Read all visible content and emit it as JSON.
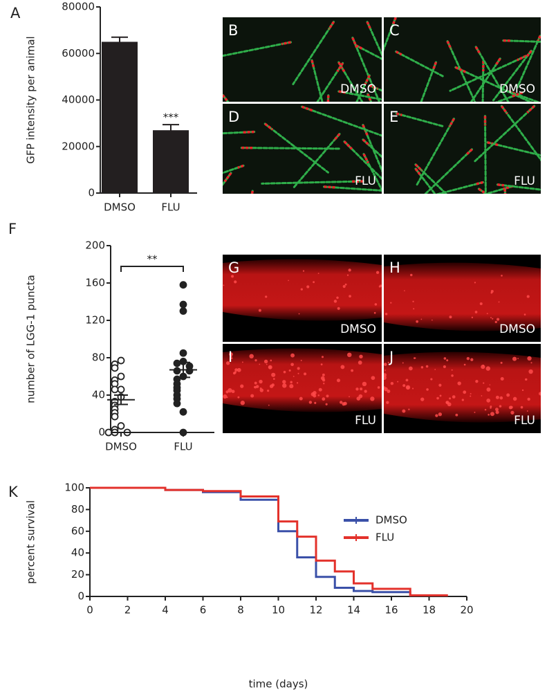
{
  "chart_data": [
    {
      "type": "bar",
      "panel": "A",
      "ylabel": "GFP intensity per animal",
      "categories": [
        "DMSO",
        "FLU"
      ],
      "values": [
        65000,
        27000
      ],
      "errors": [
        2000,
        2400
      ],
      "annotations": [
        null,
        "***"
      ],
      "color": "#231f20",
      "ylim": [
        0,
        80000
      ],
      "yticks": [
        0,
        20000,
        40000,
        60000,
        80000
      ]
    },
    {
      "type": "dot",
      "panel": "F",
      "ylabel": "number of LGG-1 puncta",
      "categories": [
        "DMSO",
        "FLU"
      ],
      "points": [
        [
          77,
          73,
          69,
          60,
          56,
          52,
          46,
          46,
          38,
          33,
          29,
          25,
          21,
          17,
          7,
          3,
          0,
          0,
          0
        ],
        [
          158,
          137,
          130,
          85,
          76,
          74,
          71,
          66,
          66,
          60,
          57,
          52,
          48,
          45,
          40,
          36,
          31,
          22,
          0
        ]
      ],
      "markers": [
        "open",
        "filled"
      ],
      "means": [
        35,
        67
      ],
      "sems": [
        5,
        8
      ],
      "bracket": "**",
      "color": "#222222",
      "ylim": [
        0,
        200
      ],
      "yticks": [
        0,
        40,
        80,
        120,
        160,
        200
      ]
    },
    {
      "type": "line",
      "step": true,
      "panel": "K",
      "xlabel": "time (days)",
      "ylabel": "percent survival",
      "series": [
        {
          "name": "DMSO",
          "color": "#3a50a8",
          "x": [
            0,
            4,
            6,
            8,
            10,
            11,
            12,
            13,
            14,
            15,
            17
          ],
          "values": [
            100,
            98,
            96,
            89,
            60,
            36,
            18,
            8,
            5,
            4,
            0
          ]
        },
        {
          "name": "FLU",
          "color": "#e3312b",
          "x": [
            0,
            4,
            6,
            8,
            10,
            11,
            12,
            13,
            14,
            15,
            17,
            19
          ],
          "values": [
            100,
            98,
            97,
            92,
            69,
            55,
            33,
            23,
            12,
            7,
            1,
            1
          ]
        }
      ],
      "legend": "right",
      "xlim": [
        0,
        20
      ],
      "xticks": [
        0,
        2,
        4,
        6,
        8,
        10,
        12,
        14,
        16,
        18,
        20
      ],
      "ylim": [
        0,
        100
      ],
      "yticks": [
        0,
        20,
        40,
        60,
        80,
        100
      ]
    }
  ],
  "image_panels": [
    {
      "letter": "B",
      "label": "DMSO"
    },
    {
      "letter": "C",
      "label": "DMSO"
    },
    {
      "letter": "D",
      "label": "FLU"
    },
    {
      "letter": "E",
      "label": "FLU"
    },
    {
      "letter": "G",
      "label": "DMSO"
    },
    {
      "letter": "H",
      "label": "DMSO"
    },
    {
      "letter": "I",
      "label": "FLU"
    },
    {
      "letter": "J",
      "label": "FLU"
    }
  ]
}
